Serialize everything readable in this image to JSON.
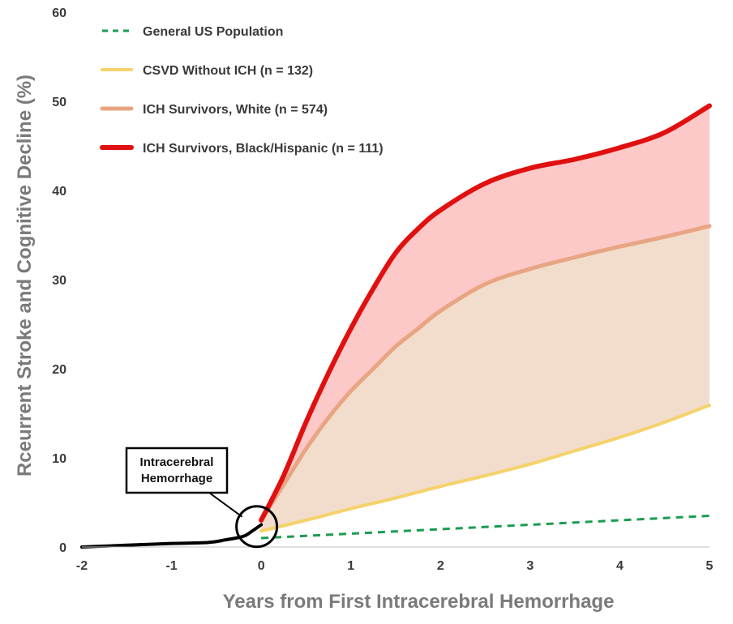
{
  "chart_data": {
    "type": "line",
    "xlabel": "Years from First Intracerebral Hemorrhage",
    "ylabel": "Rceurrent Stroke and Cognitive Decline (%)",
    "xlim": [
      -2,
      5
    ],
    "ylim": [
      0,
      60
    ],
    "xticks": [
      "-2",
      "-1",
      "0",
      "1",
      "2",
      "3",
      "4",
      "5"
    ],
    "yticks": [
      "0",
      "10",
      "20",
      "30",
      "40",
      "50",
      "60"
    ],
    "grid": false,
    "legend_position": "top-left",
    "series": [
      {
        "name": "General US Population",
        "color": "#1a9c50",
        "style": "dashed",
        "x": [
          0,
          1,
          2,
          3,
          4,
          5
        ],
        "y": [
          1.0,
          1.5,
          2.0,
          2.5,
          3.0,
          3.5
        ]
      },
      {
        "name": "CSVD Without ICH (n = 132)",
        "color": "#f5d26a",
        "style": "solid",
        "x": [
          0,
          0.5,
          1,
          1.5,
          2,
          2.5,
          3,
          3.5,
          4,
          4.5,
          5
        ],
        "y": [
          1.8,
          3.0,
          4.3,
          5.5,
          6.8,
          8.0,
          9.3,
          10.8,
          12.3,
          14.0,
          15.9
        ]
      },
      {
        "name": "ICH Survivors, White (n = 574)",
        "color": "#e8a583",
        "style": "solid",
        "x": [
          0,
          0.25,
          0.5,
          0.75,
          1,
          1.25,
          1.5,
          1.75,
          2,
          2.5,
          3,
          3.5,
          4,
          4.5,
          5
        ],
        "y": [
          3.0,
          7.0,
          11.0,
          14.5,
          17.5,
          20.0,
          22.5,
          24.5,
          26.5,
          29.5,
          31.2,
          32.5,
          33.7,
          34.8,
          36.0
        ]
      },
      {
        "name": "ICH Survivors, Black/Hispanic (n = 111)",
        "color": "#e01010",
        "style": "solid",
        "x": [
          0,
          0.25,
          0.5,
          0.75,
          1,
          1.25,
          1.5,
          1.75,
          2,
          2.5,
          3,
          3.5,
          4,
          4.5,
          5
        ],
        "y": [
          3.0,
          8.0,
          14.0,
          19.5,
          24.5,
          29.0,
          33.0,
          35.7,
          37.8,
          40.8,
          42.5,
          43.5,
          44.8,
          46.5,
          49.5
        ]
      },
      {
        "name": "",
        "color": "#000000",
        "style": "solid",
        "x": [
          -2,
          -1.5,
          -1,
          -0.6,
          -0.4,
          -0.2,
          -0.1,
          0
        ],
        "y": [
          0.0,
          0.2,
          0.4,
          0.5,
          0.8,
          1.2,
          1.8,
          2.5
        ]
      }
    ],
    "annotations": [
      {
        "text": "Intracerebral Hemorrhage",
        "lines": [
          "Intracerebral",
          "Hemorrhage"
        ],
        "x": -0.05,
        "y": 2.3
      }
    ]
  }
}
